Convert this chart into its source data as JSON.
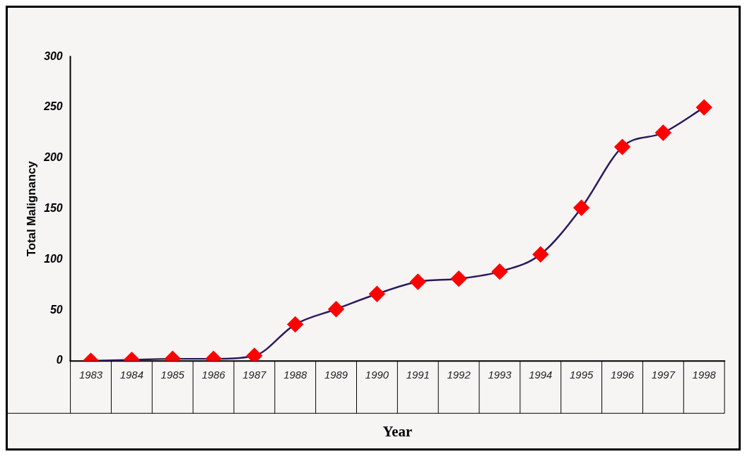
{
  "chart_data": {
    "type": "line",
    "xlabel": "Year",
    "ylabel": "Total Malignancy",
    "categories": [
      "1983",
      "1984",
      "1985",
      "1986",
      "1987",
      "1988",
      "1989",
      "1990",
      "1991",
      "1992",
      "1993",
      "1994",
      "1995",
      "1996",
      "1997",
      "1998"
    ],
    "series": [
      {
        "color": "#2a1a5e",
        "colors": [
          "#ff0000",
          "#ff0000",
          "#ff0000",
          "#ff0000",
          "#ff0000",
          "#ff0000",
          "#ff0000",
          "#ff0000",
          "#ff0000",
          "#ff0000",
          "#ff0000",
          "#ff0000",
          "#ff0000",
          "#ff0000",
          "#ff0000",
          "#ff0000"
        ],
        "values": [
          0,
          1,
          2,
          2,
          5,
          36,
          51,
          66,
          78,
          81,
          88,
          105,
          151,
          211,
          225,
          250
        ]
      }
    ],
    "marker": "diamond",
    "line_style": "solid",
    "ylim": [
      0,
      300
    ],
    "yticks": [
      0,
      50,
      100,
      150,
      200,
      250,
      300
    ],
    "grid": false,
    "legend": false
  }
}
